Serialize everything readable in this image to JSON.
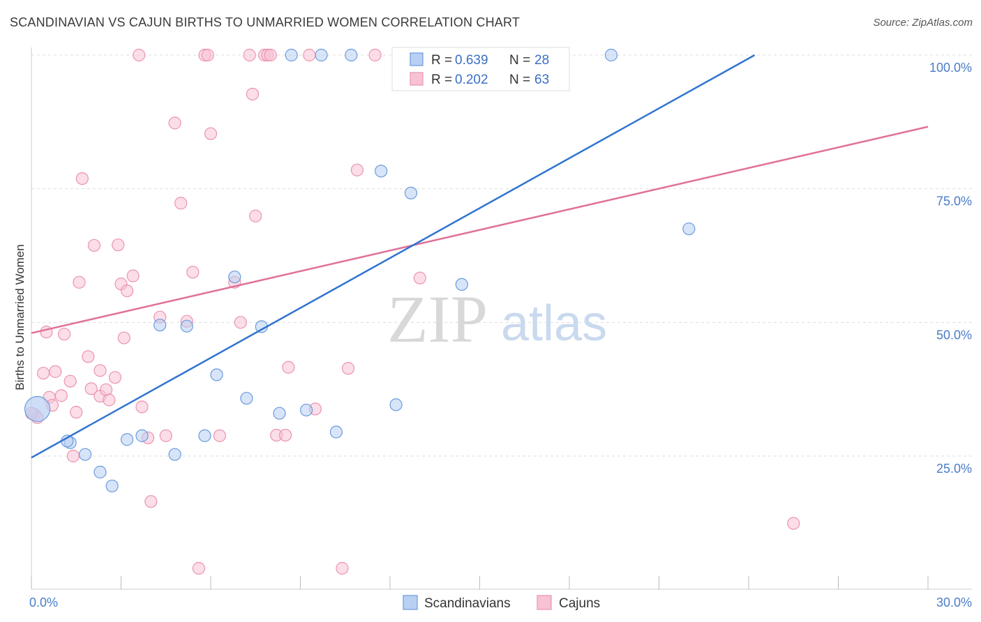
{
  "title": "SCANDINAVIAN VS CAJUN BIRTHS TO UNMARRIED WOMEN CORRELATION CHART",
  "source": "Source: ZipAtlas.com",
  "watermark": {
    "zip": "ZIP",
    "atlas": "atlas"
  },
  "colors": {
    "blue_fill": "#b8d0f2",
    "blue_stroke": "#6b9ade",
    "blue_line": "#2f74d0",
    "pink_fill": "#f7c3d3",
    "pink_stroke": "#ec93b0",
    "pink_line": "#e0729a",
    "grid": "#dddddd",
    "tick_text": "#4a7cc7"
  },
  "legend": {
    "rows": [
      {
        "r_label": "R = ",
        "r_value": "0.639",
        "n_label": "N = ",
        "n_value": "28"
      },
      {
        "r_label": "R = ",
        "r_value": "0.202",
        "n_label": "N = ",
        "n_value": "63"
      }
    ]
  },
  "bottom_legend": [
    {
      "label": "Scandinavians"
    },
    {
      "label": "Cajuns"
    }
  ],
  "chart_data": {
    "type": "scatter",
    "title": "SCANDINAVIAN VS CAJUN BIRTHS TO UNMARRIED WOMEN CORRELATION CHART",
    "xlabel": "",
    "ylabel": "Births to Unmarried Women",
    "xlim": [
      0,
      30
    ],
    "ylim": [
      0,
      101
    ],
    "x_tick_labels": [
      "0.0%",
      "30.0%"
    ],
    "y_tick_labels": [
      "25.0%",
      "50.0%",
      "75.0%",
      "100.0%"
    ],
    "y_tick_values": [
      25,
      50,
      75,
      100
    ],
    "series": [
      {
        "name": "Scandinavians",
        "R": 0.639,
        "N": 28,
        "trend": {
          "x": [
            0,
            24.2
          ],
          "y": [
            24.7,
            100
          ]
        },
        "points": [
          {
            "x": 0.2,
            "y": 33.8,
            "big": true
          },
          {
            "x": 1.3,
            "y": 27.5
          },
          {
            "x": 1.2,
            "y": 27.8
          },
          {
            "x": 1.8,
            "y": 25.3
          },
          {
            "x": 2.3,
            "y": 22.0
          },
          {
            "x": 2.7,
            "y": 19.4
          },
          {
            "x": 3.2,
            "y": 28.1
          },
          {
            "x": 3.7,
            "y": 28.8
          },
          {
            "x": 4.3,
            "y": 49.5
          },
          {
            "x": 4.8,
            "y": 25.3
          },
          {
            "x": 5.2,
            "y": 49.3
          },
          {
            "x": 5.8,
            "y": 28.8
          },
          {
            "x": 6.2,
            "y": 40.2
          },
          {
            "x": 6.8,
            "y": 58.5
          },
          {
            "x": 7.2,
            "y": 35.8
          },
          {
            "x": 7.7,
            "y": 49.2
          },
          {
            "x": 8.3,
            "y": 33.0
          },
          {
            "x": 8.7,
            "y": 100.0
          },
          {
            "x": 9.2,
            "y": 33.6
          },
          {
            "x": 9.7,
            "y": 100.0
          },
          {
            "x": 10.2,
            "y": 29.5
          },
          {
            "x": 10.7,
            "y": 100.0
          },
          {
            "x": 11.7,
            "y": 78.3
          },
          {
            "x": 12.2,
            "y": 34.6
          },
          {
            "x": 12.7,
            "y": 74.2
          },
          {
            "x": 14.4,
            "y": 57.1
          },
          {
            "x": 19.4,
            "y": 100.0
          },
          {
            "x": 22.0,
            "y": 67.5
          }
        ]
      },
      {
        "name": "Cajuns",
        "R": 0.202,
        "N": 63,
        "trend": {
          "x": [
            0,
            30
          ],
          "y": [
            48.0,
            86.6
          ]
        },
        "points": [
          {
            "x": 0.1,
            "y": 32.8
          },
          {
            "x": 0.2,
            "y": 32.2
          },
          {
            "x": 0.4,
            "y": 40.5
          },
          {
            "x": 0.5,
            "y": 48.2
          },
          {
            "x": 0.6,
            "y": 36.0
          },
          {
            "x": 0.7,
            "y": 34.5
          },
          {
            "x": 0.8,
            "y": 40.8
          },
          {
            "x": 1.0,
            "y": 36.3
          },
          {
            "x": 1.1,
            "y": 47.8
          },
          {
            "x": 1.3,
            "y": 39.0
          },
          {
            "x": 1.4,
            "y": 25.0
          },
          {
            "x": 1.5,
            "y": 33.2
          },
          {
            "x": 1.6,
            "y": 57.5
          },
          {
            "x": 1.7,
            "y": 76.9
          },
          {
            "x": 1.9,
            "y": 43.6
          },
          {
            "x": 2.0,
            "y": 37.6
          },
          {
            "x": 2.1,
            "y": 64.4
          },
          {
            "x": 2.3,
            "y": 36.2
          },
          {
            "x": 2.3,
            "y": 41.0
          },
          {
            "x": 2.5,
            "y": 37.4
          },
          {
            "x": 2.6,
            "y": 35.5
          },
          {
            "x": 2.8,
            "y": 39.7
          },
          {
            "x": 2.9,
            "y": 64.5
          },
          {
            "x": 3.0,
            "y": 57.2
          },
          {
            "x": 3.1,
            "y": 47.1
          },
          {
            "x": 3.2,
            "y": 55.9
          },
          {
            "x": 3.4,
            "y": 58.7
          },
          {
            "x": 3.6,
            "y": 100.0
          },
          {
            "x": 3.7,
            "y": 34.2
          },
          {
            "x": 3.9,
            "y": 28.4
          },
          {
            "x": 4.0,
            "y": 16.5
          },
          {
            "x": 4.3,
            "y": 51.0
          },
          {
            "x": 4.5,
            "y": 28.8
          },
          {
            "x": 4.8,
            "y": 87.3
          },
          {
            "x": 5.0,
            "y": 72.3
          },
          {
            "x": 5.2,
            "y": 50.2
          },
          {
            "x": 5.4,
            "y": 59.4
          },
          {
            "x": 5.6,
            "y": 4.0
          },
          {
            "x": 5.8,
            "y": 100.0
          },
          {
            "x": 5.9,
            "y": 100.0
          },
          {
            "x": 6.0,
            "y": 85.3
          },
          {
            "x": 6.3,
            "y": 28.8
          },
          {
            "x": 6.8,
            "y": 57.5
          },
          {
            "x": 7.0,
            "y": 50.0
          },
          {
            "x": 7.3,
            "y": 100.0
          },
          {
            "x": 7.4,
            "y": 92.7
          },
          {
            "x": 7.5,
            "y": 69.9
          },
          {
            "x": 7.8,
            "y": 100.0
          },
          {
            "x": 7.9,
            "y": 100.0
          },
          {
            "x": 8.0,
            "y": 100.0
          },
          {
            "x": 8.2,
            "y": 28.9
          },
          {
            "x": 8.5,
            "y": 28.9
          },
          {
            "x": 8.6,
            "y": 41.6
          },
          {
            "x": 9.3,
            "y": 100.0
          },
          {
            "x": 9.5,
            "y": 33.8
          },
          {
            "x": 10.4,
            "y": 4.0
          },
          {
            "x": 10.6,
            "y": 41.4
          },
          {
            "x": 10.9,
            "y": 78.5
          },
          {
            "x": 11.5,
            "y": 100.0
          },
          {
            "x": 12.5,
            "y": 100.0
          },
          {
            "x": 13.0,
            "y": 58.3
          },
          {
            "x": 25.5,
            "y": 12.4
          },
          {
            "x": 0.0,
            "y": 33.0
          }
        ]
      }
    ],
    "legend_position": "top-center"
  }
}
